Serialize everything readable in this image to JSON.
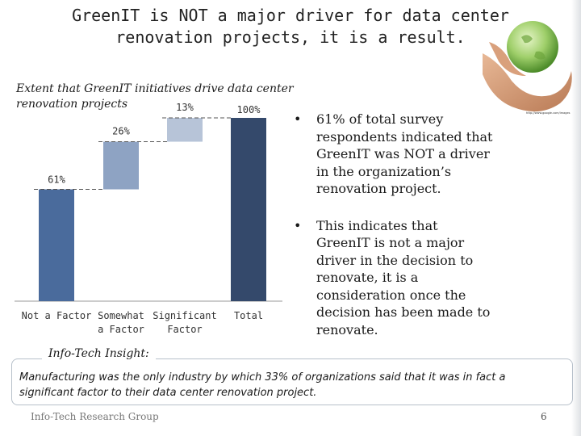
{
  "slide": {
    "title_line1": "GreenIT is NOT a major driver for data center",
    "title_line2": "renovation projects, it is a result.",
    "image_credit": "http://www.google.com/images",
    "page_number": "6",
    "footer": "Info-Tech Research Group"
  },
  "bullets": [
    {
      "symbol": "•",
      "text": "61% of total survey respondents indicated that GreenIT was NOT a driver in the organization’s renovation project."
    },
    {
      "symbol": "•",
      "text": "This indicates that GreenIT is not a major driver in the decision to renovate, it is a consideration once the decision has been made to renovate."
    }
  ],
  "insight": {
    "heading": "Info-Tech Insight:",
    "text": "Manufacturing was the only industry by which 33% of organizations said that it was in fact a significant factor to their data center renovation project."
  },
  "chart_data": {
    "type": "bar",
    "subtype": "waterfall",
    "title_line1": "Extent that GreenIT initiatives drive data center",
    "title_line2": "renovation projects",
    "categories": [
      [
        "Not a Factor"
      ],
      [
        "Somewhat",
        "a Factor"
      ],
      [
        "Significant",
        "Factor"
      ],
      [
        "Total"
      ]
    ],
    "values": [
      61,
      26,
      13,
      100
    ],
    "labels": [
      "61%",
      "26%",
      "13%",
      "100%"
    ],
    "ylim": [
      0,
      100
    ],
    "grid": false,
    "colors": {
      "not_a_factor": "#4a6b9c",
      "somewhat": "#8ea3c3",
      "significant": "#b7c4d8",
      "total": "#34496b"
    }
  }
}
